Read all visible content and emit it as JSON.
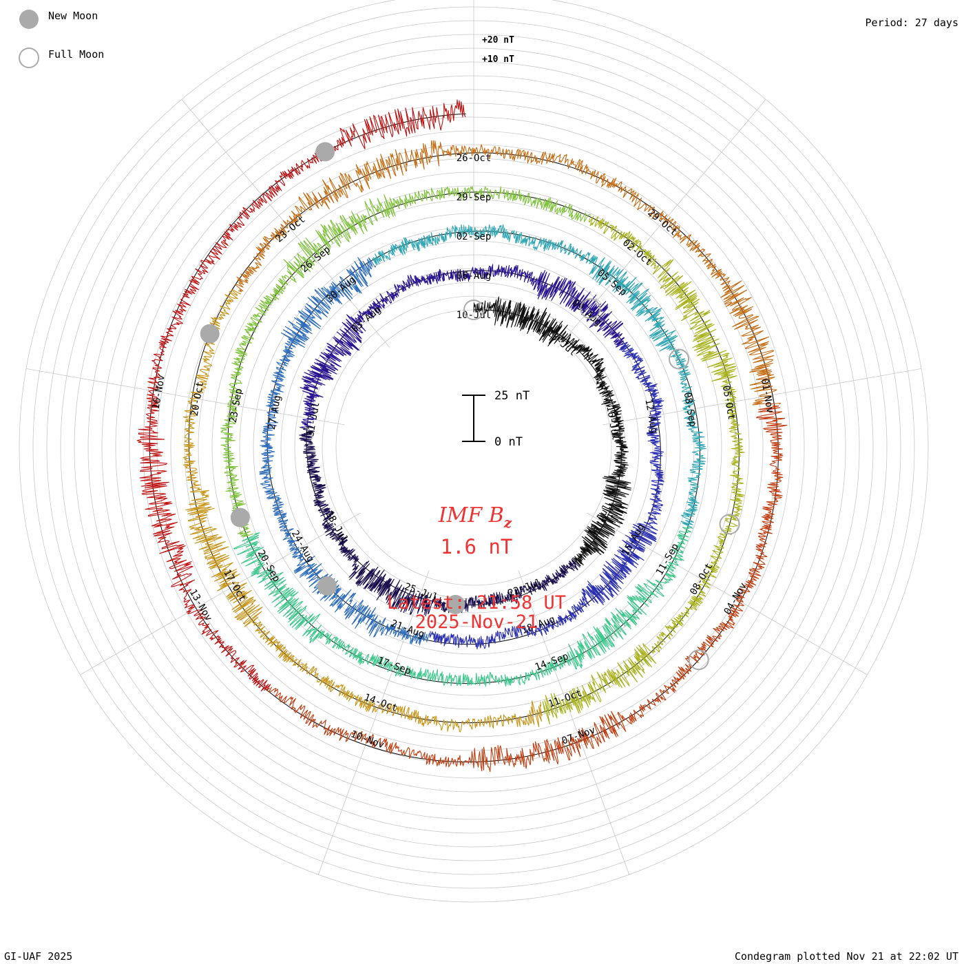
{
  "legend": {
    "new_moon_label": "New Moon",
    "full_moon_label": "Full Moon",
    "new_moon_color": "#aaaaaa",
    "full_moon_color": "#aaaaaa"
  },
  "period_label": "Period: 27 days",
  "footer_left": "GI-UAF 2025",
  "footer_right": "Condegram plotted Nov 21 at 22:02 UT",
  "scale": {
    "upper_label": "+20 nT",
    "lower_label": "+10 nT",
    "bar_top_label": "25 nT",
    "bar_bottom_label": "0 nT"
  },
  "center": {
    "title_main": "IMF B",
    "title_sub": "z",
    "value": "1.6 nT",
    "latest_label": "Latest: 21:58 UT",
    "latest_date": "2025-Nov-21",
    "text_color": "#ee3333"
  },
  "chart_data": {
    "type": "condegram",
    "title": "IMF Bz",
    "units": "nT",
    "period_days": 27,
    "start_date": "2025-Jul-10",
    "end_date": "2025-Nov-21",
    "latest_value": 1.6,
    "rotation_colors": [
      "#111111",
      "#1b0f4d",
      "#2a1390",
      "#2a2fb0",
      "#2e6dbb",
      "#2fa6b3",
      "#3cc78b",
      "#7ec23a",
      "#a8b21a",
      "#c79516",
      "#c46b10",
      "#c13a0c",
      "#c01010"
    ],
    "date_labels": [
      "10-Jul",
      "13-Jul",
      "16-Jul",
      "19-Jul",
      "22-Jul",
      "25-Jul",
      "28-Jul",
      "31-Jul",
      "03-Aug",
      "06-Aug",
      "09-Aug",
      "12-Aug",
      "15-Aug",
      "18-Aug",
      "21-Aug",
      "24-Aug",
      "27-Aug",
      "30-Aug",
      "02-Sep",
      "05-Sep",
      "08-Sep",
      "11-Sep",
      "14-Sep",
      "17-Sep",
      "20-Sep",
      "23-Sep",
      "26-Sep",
      "29-Sep",
      "02-Oct",
      "05-Oct",
      "08-Oct",
      "11-Oct",
      "14-Oct",
      "17-Oct",
      "20-Oct",
      "23-Oct",
      "26-Oct",
      "29-Oct",
      "01-Nov",
      "04-Nov",
      "07-Nov",
      "10-Nov",
      "13-Nov",
      "16-Nov"
    ],
    "new_moons": [
      "2025-Jul-24",
      "2025-Aug-23",
      "2025-Sep-21",
      "2025-Oct-21",
      "2025-Nov-20"
    ],
    "full_moons": [
      "2025-Jul-10",
      "2025-Aug-09",
      "2025-Sep-07",
      "2025-Oct-07",
      "2025-Nov-05"
    ],
    "scale_nT": {
      "ring_spacing_nT": 2.5,
      "bar_range_nT": [
        0,
        25
      ]
    }
  }
}
